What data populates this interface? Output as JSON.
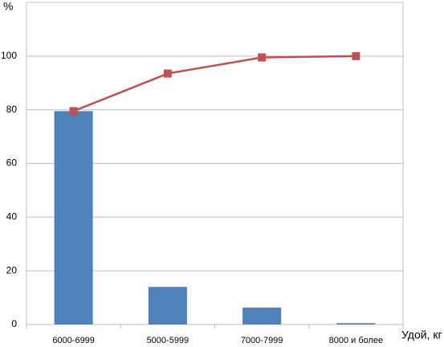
{
  "chart_data": {
    "type": "bar",
    "y_label": "%",
    "x_label": "Удой, кг",
    "categories": [
      "6000-6999",
      "5000-5999",
      "7000-7999",
      "8000 и более"
    ],
    "series": [
      {
        "type": "bar",
        "color": "#4f81bd",
        "values": [
          79.5,
          14,
          6.3,
          0.5
        ]
      },
      {
        "type": "line",
        "color": "#c0504d",
        "values": [
          79.5,
          93.5,
          99.5,
          100
        ]
      }
    ],
    "ylim": [
      0,
      120
    ],
    "yticks": [
      0,
      20,
      40,
      60,
      80,
      100
    ],
    "grid": true
  }
}
